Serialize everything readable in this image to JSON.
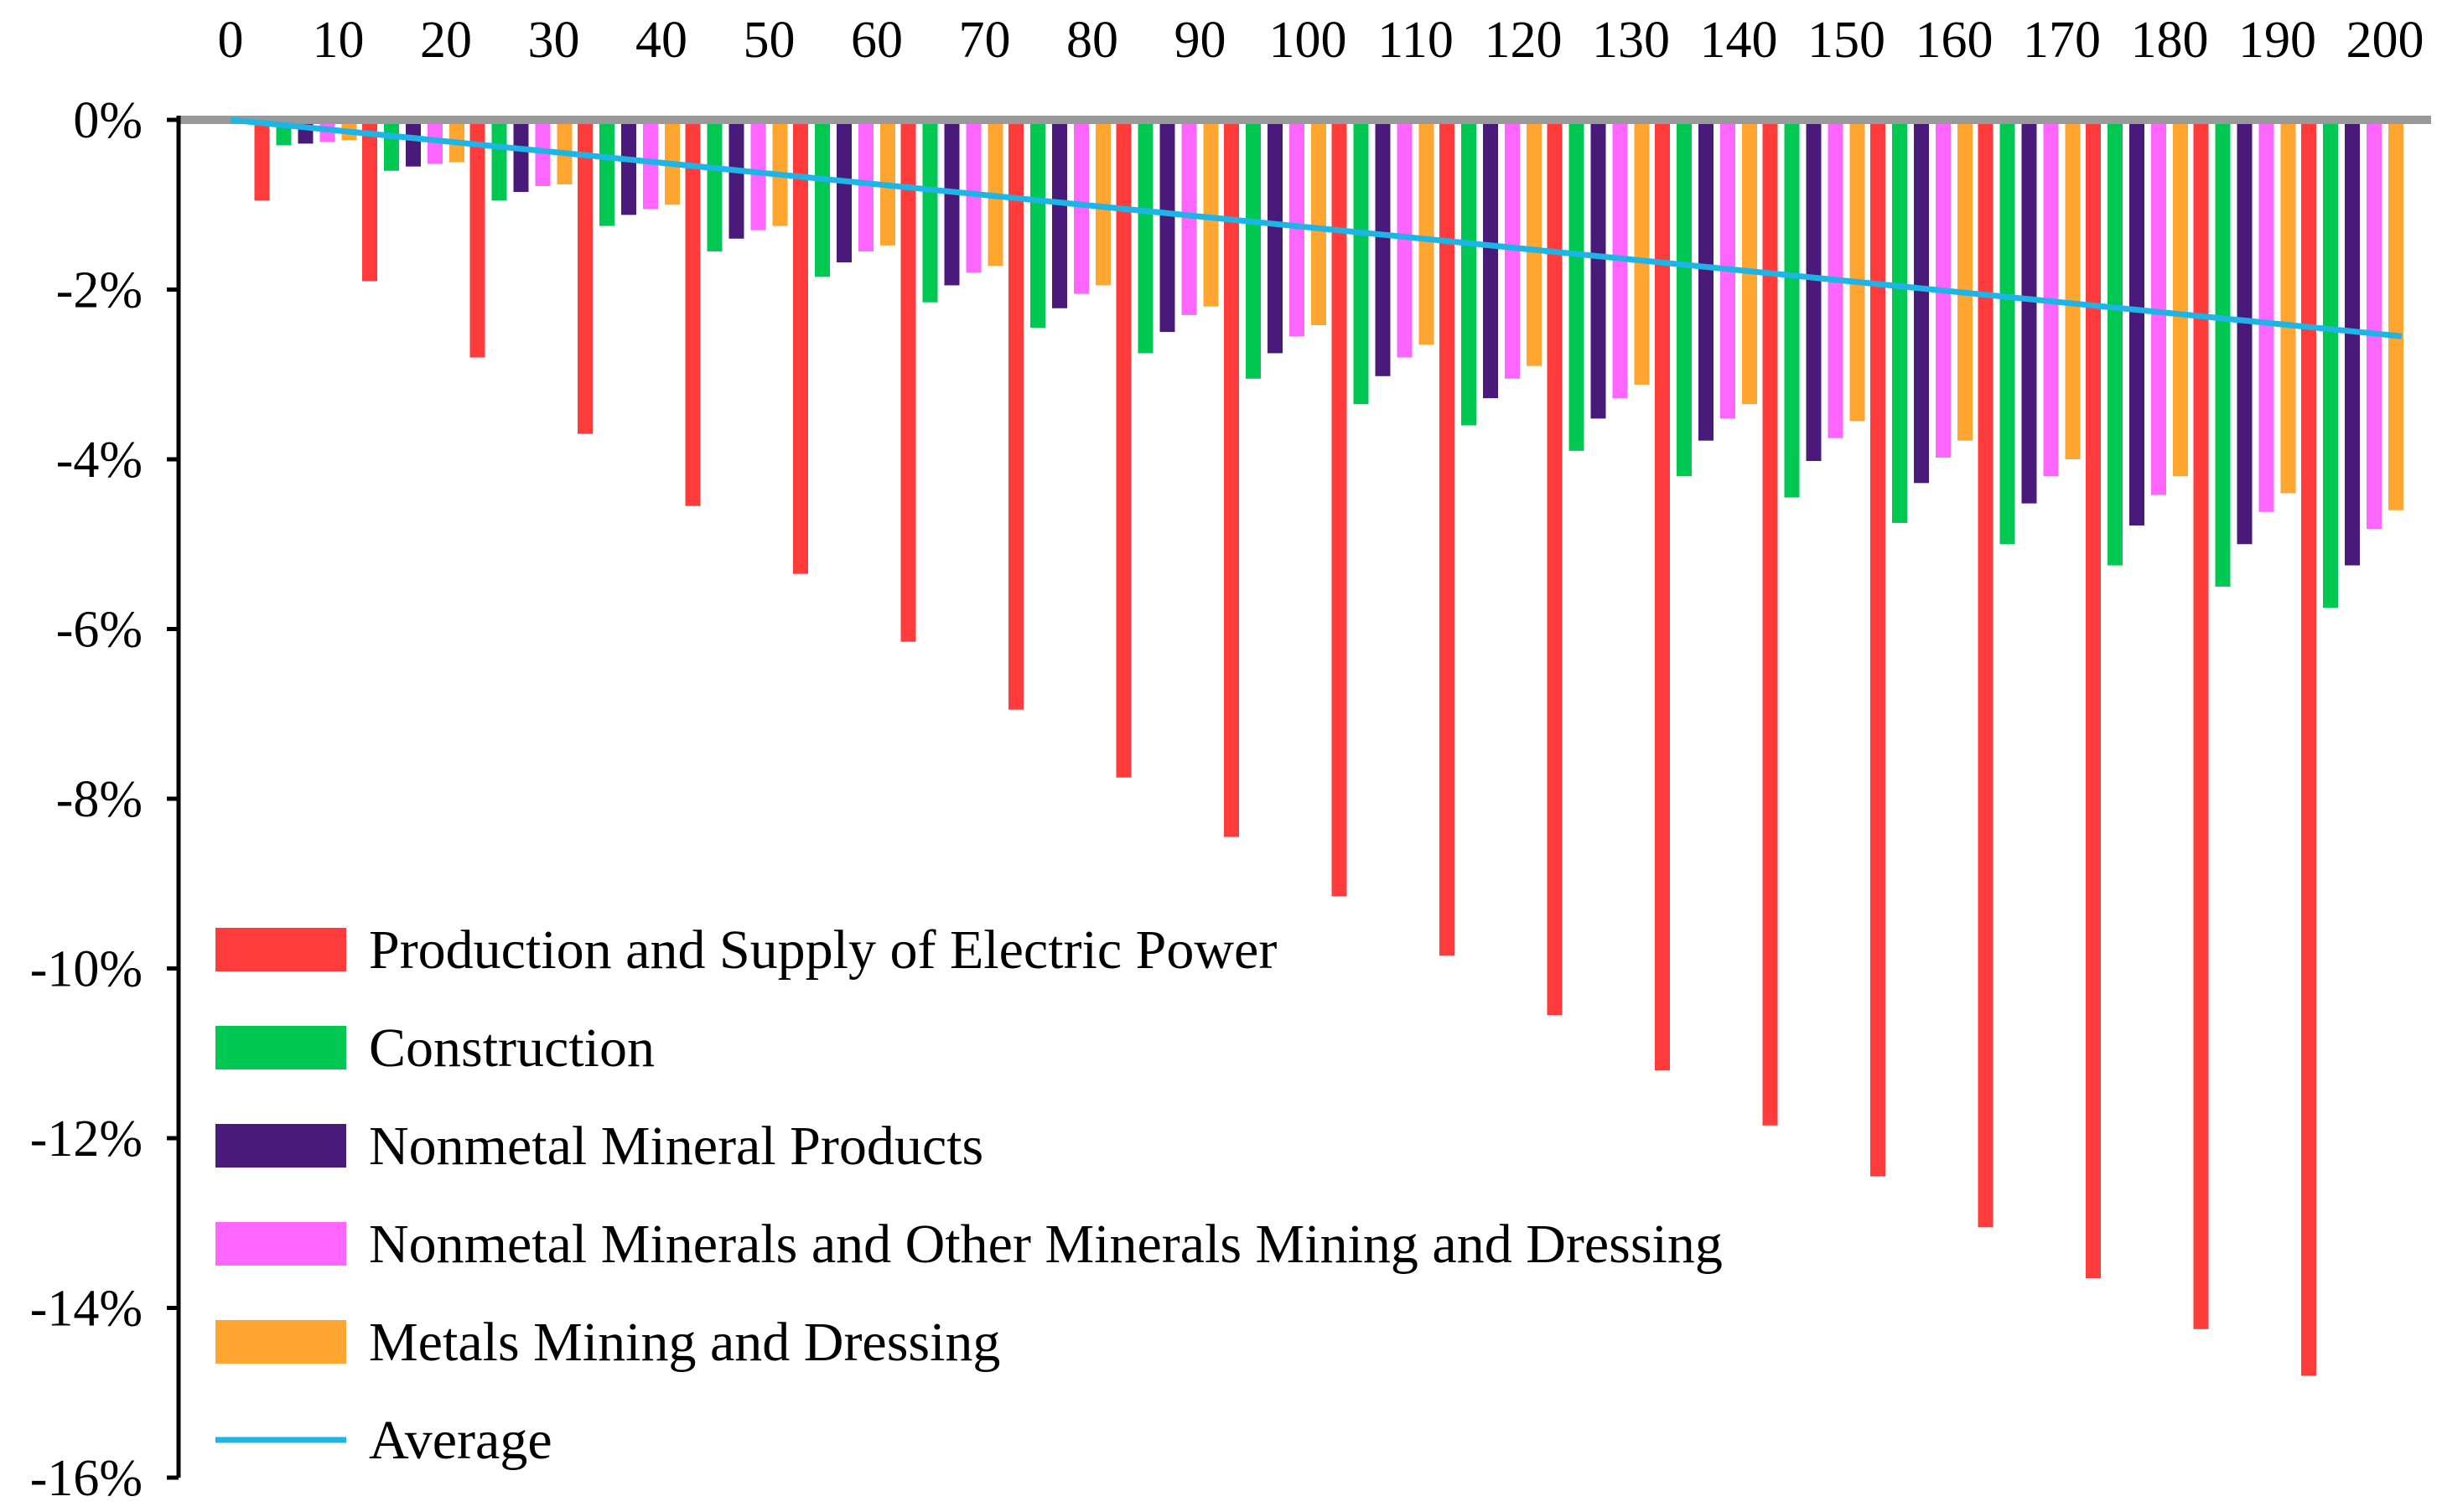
{
  "chart_data": {
    "type": "bar",
    "title": "",
    "xlabel": "",
    "ylabel": "",
    "ylim": [
      -16,
      0
    ],
    "grid": false,
    "legend_position": "bottom-left",
    "categories": [
      "10",
      "20",
      "30",
      "40",
      "50",
      "60",
      "70",
      "80",
      "90",
      "100",
      "110",
      "120",
      "130",
      "140",
      "150",
      "160",
      "170",
      "180",
      "190",
      "200"
    ],
    "x_tick_labels": [
      "0",
      "10",
      "20",
      "30",
      "40",
      "50",
      "60",
      "70",
      "80",
      "90",
      "100",
      "110",
      "120",
      "130",
      "140",
      "150",
      "160",
      "170",
      "180",
      "190",
      "200"
    ],
    "y_ticks": [
      0,
      -2,
      -4,
      -6,
      -8,
      -10,
      -12,
      -14,
      -16
    ],
    "y_tick_labels": [
      "0%",
      "-2%",
      "-4%",
      "-6%",
      "-8%",
      "-10%",
      "-12%",
      "-14%",
      "-16%"
    ],
    "series": [
      {
        "name": "Production and Supply of Electric Power",
        "color": "#ff3b3b",
        "values": [
          -0.95,
          -1.9,
          -2.8,
          -3.7,
          -4.55,
          -5.35,
          -6.15,
          -6.95,
          -7.75,
          -8.45,
          -9.15,
          -9.85,
          -10.55,
          -11.2,
          -11.85,
          -12.45,
          -13.05,
          -13.65,
          -14.25,
          -14.8
        ]
      },
      {
        "name": "Construction",
        "color": "#00c853",
        "values": [
          -0.3,
          -0.6,
          -0.95,
          -1.25,
          -1.55,
          -1.85,
          -2.15,
          -2.45,
          -2.75,
          -3.05,
          -3.35,
          -3.6,
          -3.9,
          -4.2,
          -4.45,
          -4.75,
          -5.0,
          -5.25,
          -5.5,
          -5.75
        ]
      },
      {
        "name": "Nonmetal Mineral Products",
        "color": "#4a1a7a",
        "values": [
          -0.28,
          -0.55,
          -0.85,
          -1.12,
          -1.4,
          -1.68,
          -1.95,
          -2.22,
          -2.5,
          -2.75,
          -3.02,
          -3.28,
          -3.52,
          -3.78,
          -4.02,
          -4.28,
          -4.52,
          -4.78,
          -5.0,
          -5.25
        ]
      },
      {
        "name": "Nonmetal Minerals and Other Minerals Mining and Dressing",
        "color": "#ff66ff",
        "values": [
          -0.26,
          -0.52,
          -0.78,
          -1.05,
          -1.3,
          -1.55,
          -1.8,
          -2.05,
          -2.3,
          -2.55,
          -2.8,
          -3.05,
          -3.28,
          -3.52,
          -3.75,
          -3.98,
          -4.2,
          -4.42,
          -4.62,
          -4.82
        ]
      },
      {
        "name": "Metals Mining and Dressing",
        "color": "#ffa530",
        "values": [
          -0.24,
          -0.5,
          -0.76,
          -1.0,
          -1.25,
          -1.48,
          -1.72,
          -1.95,
          -2.2,
          -2.42,
          -2.65,
          -2.9,
          -3.12,
          -3.35,
          -3.55,
          -3.78,
          -4.0,
          -4.2,
          -4.4,
          -4.6
        ]
      }
    ],
    "average": {
      "name": "Average",
      "color": "#1eb4e6",
      "x": [
        "0",
        "200"
      ],
      "values": [
        0,
        -2.55
      ]
    }
  }
}
